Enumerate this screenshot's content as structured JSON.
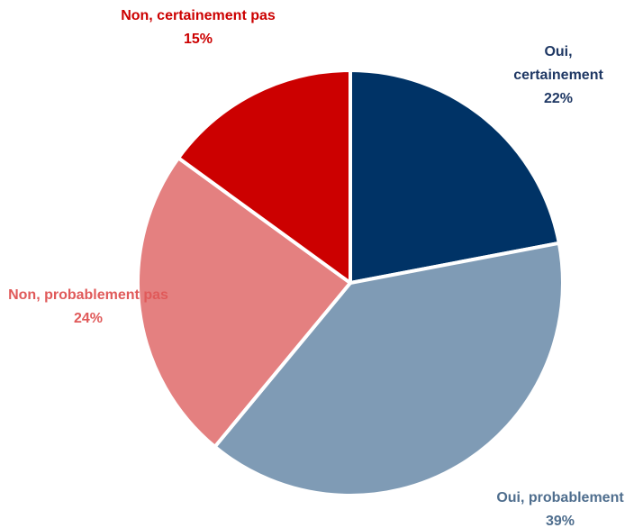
{
  "chart_data": {
    "type": "pie",
    "categories": [
      "Oui, certainement",
      "Oui, probablement",
      "Non, probablement pas",
      "Non, certainement pas"
    ],
    "values": [
      22,
      39,
      24,
      15
    ],
    "value_labels": [
      "22%",
      "39%",
      "24%",
      "15%"
    ],
    "colors": [
      "#003366",
      "#7f9bb5",
      "#e48080",
      "#cc0000"
    ],
    "label_colors": [
      "#1f3864",
      "#4f6e8e",
      "#e05a5a",
      "#cc0000"
    ]
  }
}
